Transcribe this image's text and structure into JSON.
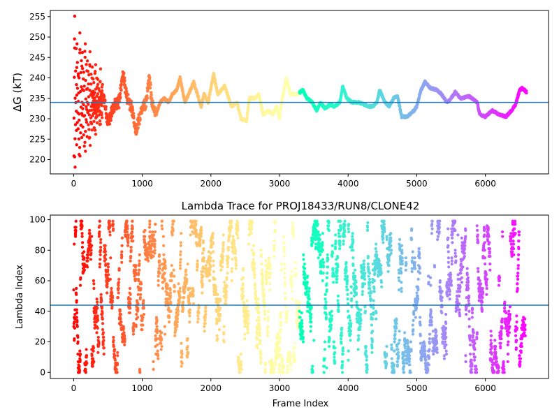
{
  "chart_data": [
    {
      "type": "scatter",
      "title": "",
      "xlabel": "",
      "ylabel": "ΔG (kT)",
      "xlim": [
        -340,
        6920
      ],
      "ylim": [
        216.5,
        256.5
      ],
      "xticks": [
        0,
        1000,
        2000,
        3000,
        4000,
        5000,
        6000
      ],
      "yticks": [
        220,
        225,
        230,
        235,
        240,
        245,
        250,
        255
      ],
      "hline": 234.0,
      "hline_color": "#1f77b4",
      "colormap": "rainbow (red at frame 0 to violet at last frame)",
      "grid": false,
      "trace_anchors": [
        [
          260,
          236
        ],
        [
          340,
          232
        ],
        [
          420,
          237
        ],
        [
          500,
          229
        ],
        [
          580,
          233
        ],
        [
          660,
          234
        ],
        [
          720,
          241
        ],
        [
          780,
          235
        ],
        [
          840,
          233
        ],
        [
          900,
          227
        ],
        [
          960,
          230
        ],
        [
          1000,
          232
        ],
        [
          1060,
          234
        ],
        [
          1100,
          240
        ],
        [
          1150,
          233
        ],
        [
          1200,
          231
        ],
        [
          1260,
          234
        ],
        [
          1320,
          235
        ],
        [
          1380,
          234
        ],
        [
          1440,
          236
        ],
        [
          1500,
          237
        ],
        [
          1550,
          240
        ],
        [
          1620,
          234
        ],
        [
          1700,
          237
        ],
        [
          1750,
          239
        ],
        [
          1820,
          235
        ],
        [
          1860,
          233
        ],
        [
          1900,
          236
        ],
        [
          1960,
          234
        ],
        [
          2040,
          241
        ],
        [
          2100,
          236
        ],
        [
          2200,
          238
        ],
        [
          2300,
          233
        ],
        [
          2380,
          234
        ],
        [
          2440,
          230
        ],
        [
          2520,
          229.5
        ],
        [
          2560,
          235
        ],
        [
          2640,
          235
        ],
        [
          2700,
          236
        ],
        [
          2760,
          231
        ],
        [
          2840,
          232
        ],
        [
          2900,
          231
        ],
        [
          2960,
          233
        ],
        [
          3000,
          230
        ],
        [
          3040,
          235
        ],
        [
          3100,
          240
        ],
        [
          3160,
          236
        ],
        [
          3260,
          236
        ],
        [
          3340,
          237
        ],
        [
          3400,
          235
        ],
        [
          3480,
          234
        ],
        [
          3540,
          232
        ],
        [
          3600,
          234
        ],
        [
          3660,
          232.5
        ],
        [
          3740,
          233.5
        ],
        [
          3800,
          233
        ],
        [
          3880,
          234
        ],
        [
          3920,
          238
        ],
        [
          3980,
          235
        ],
        [
          4060,
          234
        ],
        [
          4160,
          234
        ],
        [
          4300,
          233
        ],
        [
          4360,
          233
        ],
        [
          4420,
          234
        ],
        [
          4460,
          237
        ],
        [
          4540,
          234
        ],
        [
          4600,
          233
        ],
        [
          4660,
          235
        ],
        [
          4720,
          235.5
        ],
        [
          4780,
          230.5
        ],
        [
          4860,
          230.5
        ],
        [
          4960,
          232
        ],
        [
          5000,
          233
        ],
        [
          5060,
          237
        ],
        [
          5120,
          239
        ],
        [
          5200,
          237.5
        ],
        [
          5300,
          237
        ],
        [
          5360,
          236
        ],
        [
          5440,
          234
        ],
        [
          5480,
          234.5
        ],
        [
          5560,
          236.5
        ],
        [
          5640,
          235
        ],
        [
          5760,
          235.5
        ],
        [
          5880,
          234
        ],
        [
          5920,
          231
        ],
        [
          6000,
          230.5
        ],
        [
          6100,
          232
        ],
        [
          6200,
          231
        ],
        [
          6300,
          230.5
        ],
        [
          6380,
          232
        ],
        [
          6440,
          233.5
        ],
        [
          6500,
          237
        ],
        [
          6540,
          237.5
        ],
        [
          6600,
          236.5
        ]
      ],
      "early_scatter": {
        "x_range": [
          0,
          420
        ],
        "y_samples": [
          220,
          230,
          240,
          221,
          250,
          248,
          255,
          218,
          225,
          236,
          242,
          228,
          233,
          247,
          226,
          239,
          231,
          244,
          223,
          235,
          249,
          229,
          238,
          245,
          232,
          227,
          241,
          234,
          237,
          243,
          224,
          230
        ]
      }
    },
    {
      "type": "scatter",
      "title": "Lambda Trace for PROJ18433/RUN8/CLONE42",
      "xlabel": "Frame Index",
      "ylabel": "Lambda Index",
      "xlim": [
        -340,
        6920
      ],
      "ylim": [
        -4,
        103
      ],
      "xticks": [
        0,
        1000,
        2000,
        3000,
        4000,
        5000,
        6000
      ],
      "yticks": [
        0,
        20,
        40,
        60,
        80,
        100
      ],
      "hline": 44.0,
      "hline_color": "#1f77b4",
      "colormap": "rainbow (red at frame 0 to violet at last frame)",
      "grid": false,
      "x_range": [
        0,
        6580
      ],
      "y_range": [
        0,
        99
      ],
      "n_points": 6580
    }
  ]
}
